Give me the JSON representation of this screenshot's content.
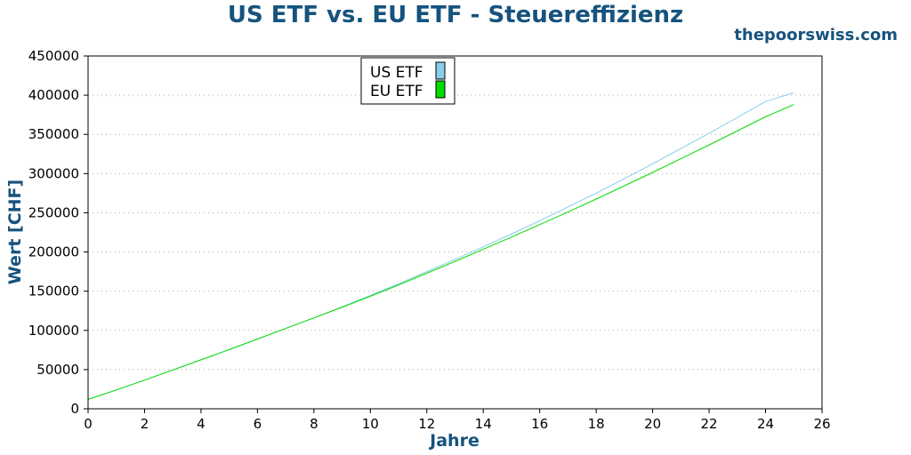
{
  "chart_data": {
    "type": "line",
    "title": "US ETF vs. EU ETF - Steuereffizienz",
    "brand": "thepoorswiss.com",
    "xlabel": "Jahre",
    "ylabel": "Wert [CHF]",
    "xlim": [
      0,
      26
    ],
    "ylim": [
      0,
      450000
    ],
    "xticks": [
      0,
      2,
      4,
      6,
      8,
      10,
      12,
      14,
      16,
      18,
      20,
      22,
      24,
      26
    ],
    "yticks": [
      0,
      50000,
      100000,
      150000,
      200000,
      250000,
      300000,
      350000,
      400000,
      450000
    ],
    "grid": "horizontal-dotted",
    "legend_position": "top-center",
    "x": [
      0,
      1,
      2,
      3,
      4,
      5,
      6,
      7,
      8,
      9,
      10,
      11,
      12,
      13,
      14,
      15,
      16,
      17,
      18,
      19,
      20,
      21,
      22,
      23,
      24,
      25
    ],
    "series": [
      {
        "name": "US ETF",
        "color": "#87ceeb",
        "values": [
          12000,
          24000,
          36500,
          49500,
          62500,
          75500,
          89000,
          102500,
          116000,
          130000,
          144500,
          159500,
          175000,
          190500,
          206500,
          223000,
          240000,
          257500,
          275000,
          293500,
          312500,
          332000,
          351500,
          371500,
          392000,
          403000
        ]
      },
      {
        "name": "EU ETF",
        "color": "#00dd00",
        "values": [
          12000,
          24000,
          36500,
          49500,
          62500,
          75500,
          89000,
          102500,
          116000,
          129500,
          143500,
          158000,
          173000,
          188000,
          203500,
          219000,
          235000,
          251000,
          267500,
          284500,
          301500,
          319000,
          336500,
          354500,
          372500,
          388000
        ]
      }
    ]
  }
}
